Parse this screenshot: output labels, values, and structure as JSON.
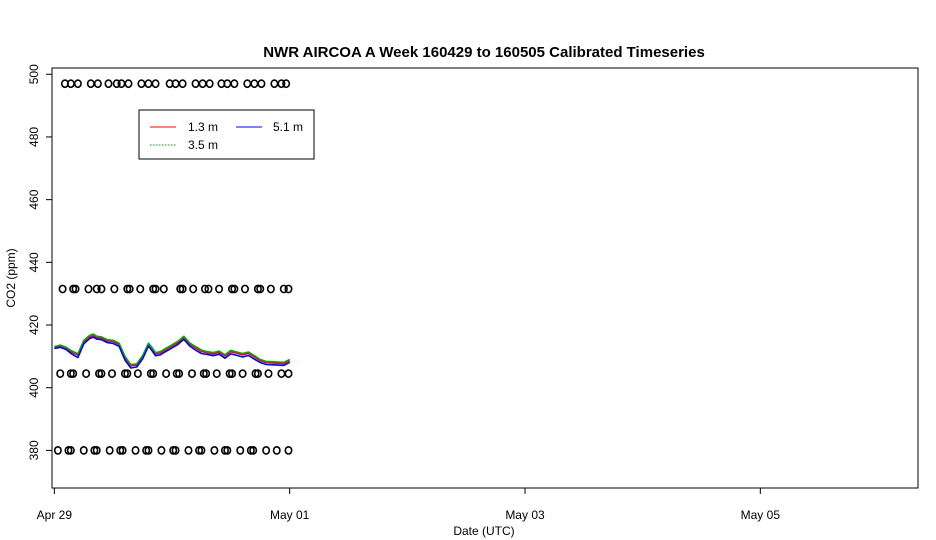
{
  "chart_data": {
    "type": "line",
    "title": "NWR AIRCOA A  Week 160429 to 160505  Calibrated Timeseries",
    "xlabel": "Date (UTC)",
    "ylabel": "CO2 (ppm)",
    "xlim": [
      -0.02,
      7.34
    ],
    "ylim": [
      368,
      502
    ],
    "x_unit": "days from Apr 29 00:00 UTC",
    "x_ticks": [
      {
        "value": 0,
        "label": "Apr 29"
      },
      {
        "value": 2,
        "label": "May 01"
      },
      {
        "value": 4,
        "label": "May 03"
      },
      {
        "value": 6,
        "label": "May 05"
      }
    ],
    "y_ticks": [
      380,
      400,
      420,
      440,
      460,
      480,
      500
    ],
    "grid": false,
    "legend": {
      "placement": "top-left"
    },
    "series": [
      {
        "name": "1.3 m",
        "color": "#ff0000",
        "x": [
          0.0,
          0.05,
          0.1,
          0.15,
          0.2,
          0.25,
          0.3,
          0.33,
          0.36,
          0.4,
          0.45,
          0.5,
          0.55,
          0.6,
          0.65,
          0.7,
          0.75,
          0.8,
          0.83,
          0.86,
          0.9,
          0.95,
          1.0,
          1.05,
          1.1,
          1.15,
          1.2,
          1.25,
          1.3,
          1.35,
          1.4,
          1.45,
          1.5,
          1.55,
          1.6,
          1.65,
          1.7,
          1.75,
          1.8,
          1.85,
          1.9,
          1.95,
          2.0
        ],
        "y": [
          412.8,
          413.2,
          412.6,
          411.3,
          410.4,
          414.6,
          416.2,
          416.6,
          416.0,
          415.8,
          414.9,
          414.7,
          413.8,
          409.6,
          407.0,
          407.2,
          409.8,
          413.8,
          412.4,
          410.8,
          411.1,
          412.2,
          413.3,
          414.4,
          416.0,
          413.9,
          412.7,
          411.6,
          411.1,
          410.8,
          411.3,
          410.1,
          411.5,
          411.0,
          410.5,
          411.0,
          409.8,
          408.6,
          408.0,
          407.9,
          407.8,
          407.7,
          408.6
        ]
      },
      {
        "name": "3.5 m",
        "color": "#00aa00",
        "x": [
          0.0,
          0.05,
          0.1,
          0.15,
          0.2,
          0.25,
          0.3,
          0.33,
          0.36,
          0.4,
          0.45,
          0.5,
          0.55,
          0.6,
          0.65,
          0.7,
          0.75,
          0.8,
          0.83,
          0.86,
          0.9,
          0.95,
          1.0,
          1.05,
          1.1,
          1.15,
          1.2,
          1.25,
          1.3,
          1.35,
          1.4,
          1.45,
          1.5,
          1.55,
          1.6,
          1.65,
          1.7,
          1.75,
          1.8,
          1.85,
          1.9,
          1.95,
          2.0
        ],
        "y": [
          413.1,
          413.6,
          412.9,
          411.7,
          410.8,
          415.1,
          416.7,
          417.1,
          416.4,
          416.2,
          415.3,
          415.1,
          414.2,
          410.0,
          407.4,
          407.6,
          410.2,
          414.2,
          412.8,
          411.2,
          411.5,
          412.6,
          413.7,
          414.8,
          416.4,
          414.3,
          413.1,
          412.0,
          411.5,
          411.2,
          411.7,
          410.5,
          411.9,
          411.4,
          410.9,
          411.4,
          410.2,
          409.0,
          408.4,
          408.3,
          408.2,
          408.1,
          409.0
        ]
      },
      {
        "name": "5.1 m",
        "color": "#0000ff",
        "x": [
          0.0,
          0.05,
          0.1,
          0.15,
          0.2,
          0.25,
          0.3,
          0.33,
          0.36,
          0.4,
          0.45,
          0.5,
          0.55,
          0.6,
          0.65,
          0.7,
          0.75,
          0.8,
          0.83,
          0.86,
          0.9,
          0.95,
          1.0,
          1.05,
          1.1,
          1.15,
          1.2,
          1.25,
          1.3,
          1.35,
          1.4,
          1.45,
          1.5,
          1.55,
          1.6,
          1.65,
          1.7,
          1.75,
          1.8,
          1.85,
          1.9,
          1.95,
          2.0
        ],
        "y": [
          412.5,
          412.9,
          412.2,
          410.7,
          409.6,
          414.0,
          415.7,
          416.1,
          415.5,
          415.3,
          414.4,
          414.1,
          413.2,
          408.8,
          406.3,
          406.6,
          409.2,
          413.3,
          411.8,
          410.2,
          410.5,
          411.6,
          412.7,
          413.8,
          415.4,
          413.3,
          412.0,
          410.9,
          410.6,
          410.2,
          410.7,
          409.4,
          410.8,
          410.3,
          409.8,
          410.3,
          409.1,
          408.0,
          407.4,
          407.3,
          407.2,
          407.1,
          408.1
        ]
      }
    ],
    "markers": {
      "shape": "open-circle",
      "color": "#000000",
      "series": [
        {
          "y": 497,
          "x": [
            0.09,
            0.14,
            0.2,
            0.31,
            0.37,
            0.46,
            0.53,
            0.57,
            0.63,
            0.74,
            0.8,
            0.86,
            0.98,
            1.03,
            1.09,
            1.2,
            1.26,
            1.32,
            1.42,
            1.47,
            1.53,
            1.64,
            1.7,
            1.76,
            1.87,
            1.93,
            1.97
          ]
        },
        {
          "y": 431.5,
          "x": [
            0.07,
            0.16,
            0.18,
            0.29,
            0.36,
            0.4,
            0.51,
            0.62,
            0.64,
            0.73,
            0.84,
            0.86,
            0.93,
            1.07,
            1.09,
            1.18,
            1.28,
            1.31,
            1.4,
            1.51,
            1.53,
            1.62,
            1.73,
            1.75,
            1.84,
            1.95,
            1.99
          ]
        },
        {
          "y": 404.5,
          "x": [
            0.05,
            0.14,
            0.16,
            0.27,
            0.38,
            0.4,
            0.49,
            0.6,
            0.62,
            0.71,
            0.82,
            0.84,
            0.95,
            1.04,
            1.06,
            1.17,
            1.27,
            1.29,
            1.38,
            1.49,
            1.51,
            1.6,
            1.71,
            1.73,
            1.82,
            1.93,
            1.99
          ]
        },
        {
          "y": 380,
          "x": [
            0.03,
            0.12,
            0.14,
            0.25,
            0.34,
            0.36,
            0.47,
            0.56,
            0.58,
            0.69,
            0.78,
            0.8,
            0.91,
            1.01,
            1.03,
            1.14,
            1.23,
            1.25,
            1.36,
            1.45,
            1.47,
            1.58,
            1.67,
            1.69,
            1.8,
            1.89,
            1.99
          ]
        }
      ]
    }
  }
}
